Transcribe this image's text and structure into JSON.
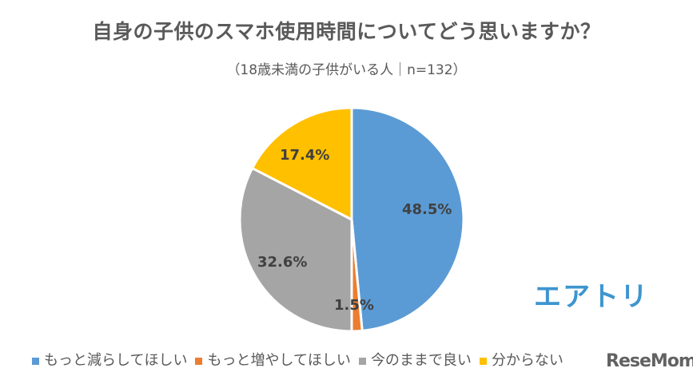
{
  "header": {
    "title": "自身の子供のスマホ使用時間についてどう思いますか？",
    "subtitle": "（18歳未満の子供がいる人｜n=132）"
  },
  "brand": {
    "logo_text": "エアトリ",
    "watermark": "ReseMom"
  },
  "legend": [
    {
      "label": "もっと減らしてほしい",
      "color": "#5b9bd5"
    },
    {
      "label": "もっと増やしてほしい",
      "color": "#ed7d31"
    },
    {
      "label": "今のままで良い",
      "color": "#a5a5a5"
    },
    {
      "label": "分からない",
      "color": "#ffc000"
    }
  ],
  "labels": {
    "s0": "48.5%",
    "s1": "1.5%",
    "s2": "32.6%",
    "s3": "17.4%"
  },
  "chart_data": {
    "type": "pie",
    "title": "自身の子供のスマホ使用時間についてどう思いますか？",
    "subtitle": "（18歳未満の子供がいる人｜n=132）",
    "categories": [
      "もっと減らしてほしい",
      "もっと増やしてほしい",
      "今のままで良い",
      "分からない"
    ],
    "values": [
      48.5,
      1.5,
      32.6,
      17.4
    ],
    "unit": "%",
    "colors": [
      "#5b9bd5",
      "#ed7d31",
      "#a5a5a5",
      "#ffc000"
    ],
    "start_angle": "12 o'clock, clockwise",
    "legend_position": "bottom"
  }
}
